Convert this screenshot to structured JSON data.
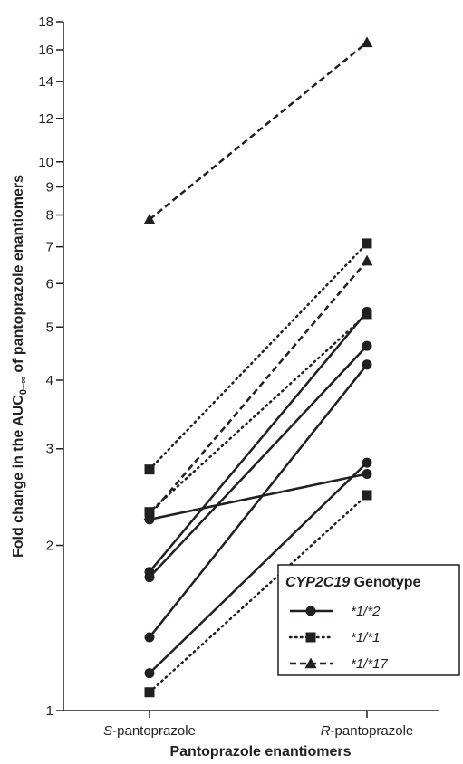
{
  "chart_data": {
    "type": "line",
    "xlabel": "Pantoprazole enantiomers",
    "ylabel_parts": {
      "pre": "Fold change in the AUC",
      "sub": "0–∞",
      "post": " of pantoprazole enantiomers"
    },
    "x_categories": {
      "S": {
        "prefix": "S",
        "rest": "-pantoprazole"
      },
      "R": {
        "prefix": "R",
        "rest": "-pantoprazole"
      }
    },
    "y_scale": "log",
    "ylim": [
      1,
      18
    ],
    "y_ticks": [
      1,
      2,
      3,
      4,
      5,
      6,
      7,
      8,
      9,
      10,
      12,
      14,
      16,
      18
    ],
    "y_tick_labels": [
      "1",
      "2",
      "3",
      "4",
      "5",
      "6",
      "7",
      "8",
      "9",
      "10",
      "12",
      "14",
      "16",
      "18"
    ],
    "legend": {
      "title_gene": "CYP2C19",
      "title_rest": " Genotype",
      "placement": "bottom-right",
      "entries": [
        {
          "genotype": "*1/*2",
          "marker": "circle",
          "dash": "solid"
        },
        {
          "genotype": "*1/*1",
          "marker": "square",
          "dash": "dotted"
        },
        {
          "genotype": "*1/*17",
          "marker": "triangle",
          "dash": "dashed"
        }
      ]
    },
    "series": [
      {
        "genotype": "*1/*2",
        "values": [
          1.79,
          5.33
        ]
      },
      {
        "genotype": "*1/*2",
        "values": [
          1.75,
          4.62
        ]
      },
      {
        "genotype": "*1/*2",
        "values": [
          1.36,
          4.27
        ]
      },
      {
        "genotype": "*1/*2",
        "values": [
          1.17,
          2.83
        ]
      },
      {
        "genotype": "*1/*2",
        "values": [
          2.23,
          2.7
        ]
      },
      {
        "genotype": "*1/*1",
        "values": [
          2.75,
          7.1
        ]
      },
      {
        "genotype": "*1/*1",
        "values": [
          2.3,
          5.28
        ]
      },
      {
        "genotype": "*1/*1",
        "values": [
          1.08,
          2.47
        ]
      },
      {
        "genotype": "*1/*17",
        "values": [
          7.85,
          16.5
        ]
      },
      {
        "genotype": "*1/*17",
        "values": [
          2.27,
          6.6
        ]
      }
    ]
  }
}
